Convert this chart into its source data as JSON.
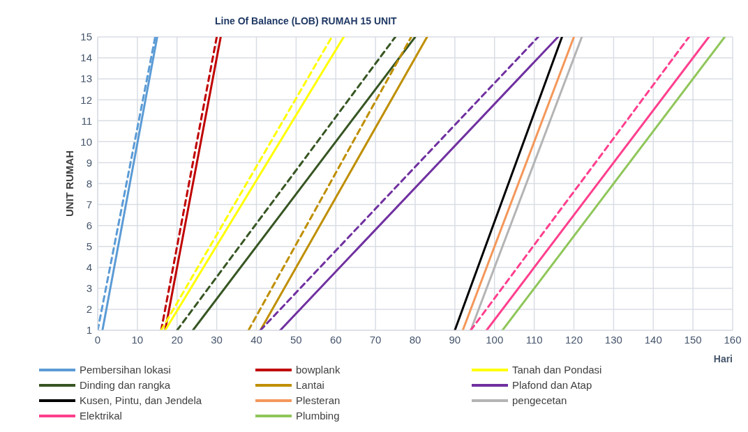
{
  "chart_data": {
    "type": "line",
    "title": "Line Of Balance (LOB) RUMAH 15 UNIT",
    "xlabel": "Hari",
    "ylabel": "UNIT RUMAH",
    "xlim": [
      0,
      160
    ],
    "xticks": [
      0,
      10,
      20,
      30,
      40,
      50,
      60,
      70,
      80,
      90,
      100,
      110,
      120,
      130,
      140,
      150,
      160
    ],
    "ylim": [
      1,
      15
    ],
    "yticks": [
      1,
      2,
      3,
      4,
      5,
      6,
      7,
      8,
      9,
      10,
      11,
      12,
      13,
      14,
      15
    ],
    "grid": true,
    "legend": "bottom",
    "marker": "none",
    "series": [
      {
        "name": "Pembersihan lokasi",
        "color": "#5b9bd5",
        "x": [
          1.2,
          15
        ],
        "values": [
          1,
          15
        ]
      },
      {
        "color": "#5b9bd5",
        "line_style": "dashed",
        "x": [
          0,
          14.5
        ],
        "values": [
          1,
          15
        ]
      },
      {
        "name": "bowplank",
        "color": "#c00000",
        "x": [
          17,
          31
        ],
        "values": [
          1,
          15
        ]
      },
      {
        "color": "#c00000",
        "line_style": "dashed",
        "x": [
          16,
          30
        ],
        "values": [
          1,
          15
        ]
      },
      {
        "name": "Tanah dan Pondasi",
        "color": "#ffff00",
        "x": [
          17,
          62
        ],
        "values": [
          1,
          15
        ]
      },
      {
        "color": "#ffff00",
        "line_style": "dashed",
        "x": [
          16,
          59
        ],
        "values": [
          1,
          15
        ]
      },
      {
        "name": "Dinding dan rangka",
        "color": "#375623",
        "x": [
          24,
          80
        ],
        "values": [
          1,
          15
        ]
      },
      {
        "color": "#375623",
        "line_style": "dashed",
        "x": [
          20,
          75
        ],
        "values": [
          1,
          15
        ]
      },
      {
        "name": "Lantai",
        "color": "#bf8f00",
        "x": [
          41,
          83
        ],
        "values": [
          1,
          15
        ]
      },
      {
        "color": "#bf8f00",
        "line_style": "dashed",
        "x": [
          38,
          79
        ],
        "values": [
          1,
          15
        ]
      },
      {
        "name": "Plafond dan Atap",
        "color": "#7030a0",
        "x": [
          46,
          116
        ],
        "values": [
          1,
          15
        ]
      },
      {
        "color": "#7030a0",
        "line_style": "dashed",
        "x": [
          41,
          111
        ],
        "values": [
          1,
          15
        ]
      },
      {
        "name": "Kusen, Pintu, dan Jendela",
        "color": "#000000",
        "x": [
          90,
          117
        ],
        "values": [
          1,
          15
        ]
      },
      {
        "name": "Plesteran",
        "color": "#f4975a",
        "x": [
          92,
          120
        ],
        "values": [
          1,
          15
        ]
      },
      {
        "name": "pengecetan",
        "color": "#b4b4b4",
        "x": [
          94,
          122
        ],
        "values": [
          1,
          15
        ]
      },
      {
        "name": "Elektrikal",
        "color": "#ff3f8e",
        "x": [
          98,
          154
        ],
        "values": [
          1,
          15
        ]
      },
      {
        "color": "#ff3f8e",
        "line_style": "dashed",
        "x": [
          94,
          149
        ],
        "values": [
          1,
          15
        ]
      },
      {
        "name": "Plumbing",
        "color": "#8fc65a",
        "x": [
          102,
          158
        ],
        "values": [
          1,
          15
        ]
      }
    ]
  }
}
